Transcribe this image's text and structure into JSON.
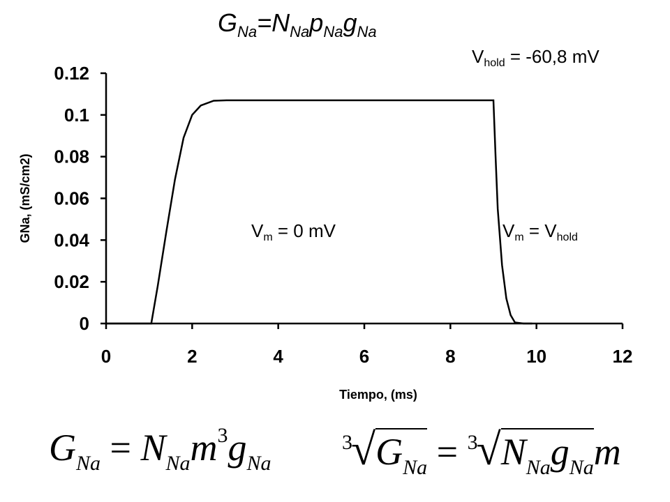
{
  "title": {
    "g": "G",
    "g_sub": "Na",
    "eq": "=",
    "n": "N",
    "n_sub": "Na",
    "p": "p",
    "p_sub": "Na",
    "g2": "g",
    "g2_sub": "Na"
  },
  "annotations": {
    "vhold": {
      "v": "V",
      "sub": "hold",
      "rest": " = -60,8 mV"
    },
    "vm_zero": {
      "v": "V",
      "sub": "m",
      "rest": " = 0 mV"
    },
    "vm_hold": {
      "v": "V",
      "sub": "m",
      "mid": " = V",
      "sub2": "hold"
    }
  },
  "equations": {
    "eq1": {
      "G": "G",
      "Gsub": "Na",
      "eq": " = ",
      "N": "N",
      "Nsub": "Na",
      "m": "m",
      "pow": "3",
      "g": "g",
      "gsub": "Na"
    },
    "eq2": {
      "idx": "3",
      "G": "G",
      "Gsub": "Na",
      "eq": " = ",
      "idx2": "3",
      "N": "N",
      "Nsub": "Na",
      "g": "g",
      "gsub": "Na",
      "m": "m"
    }
  },
  "chart_data": {
    "type": "line",
    "xlabel": "Tiempo, (ms)",
    "ylabel": "GNa, (mS/cm2)",
    "xlim": [
      0,
      12
    ],
    "ylim": [
      0,
      0.12
    ],
    "xticks": [
      "0",
      "2",
      "4",
      "6",
      "8",
      "10",
      "12"
    ],
    "yticks": [
      "0",
      "0.02",
      "0.04",
      "0.06",
      "0.08",
      "0.1",
      "0.12"
    ],
    "grid": false,
    "series": [
      {
        "color": "#000000",
        "x": [
          0,
          1.05,
          1.2,
          1.4,
          1.6,
          1.8,
          2.0,
          2.2,
          2.5,
          2.8,
          9.0,
          9.05,
          9.1,
          9.2,
          9.3,
          9.4,
          9.5,
          9.7,
          9.9
        ],
        "y": [
          0,
          0,
          0.018,
          0.044,
          0.069,
          0.089,
          0.1,
          0.1045,
          0.1068,
          0.107,
          0.107,
          0.08,
          0.055,
          0.028,
          0.012,
          0.004,
          0.0005,
          0,
          0
        ]
      }
    ]
  }
}
